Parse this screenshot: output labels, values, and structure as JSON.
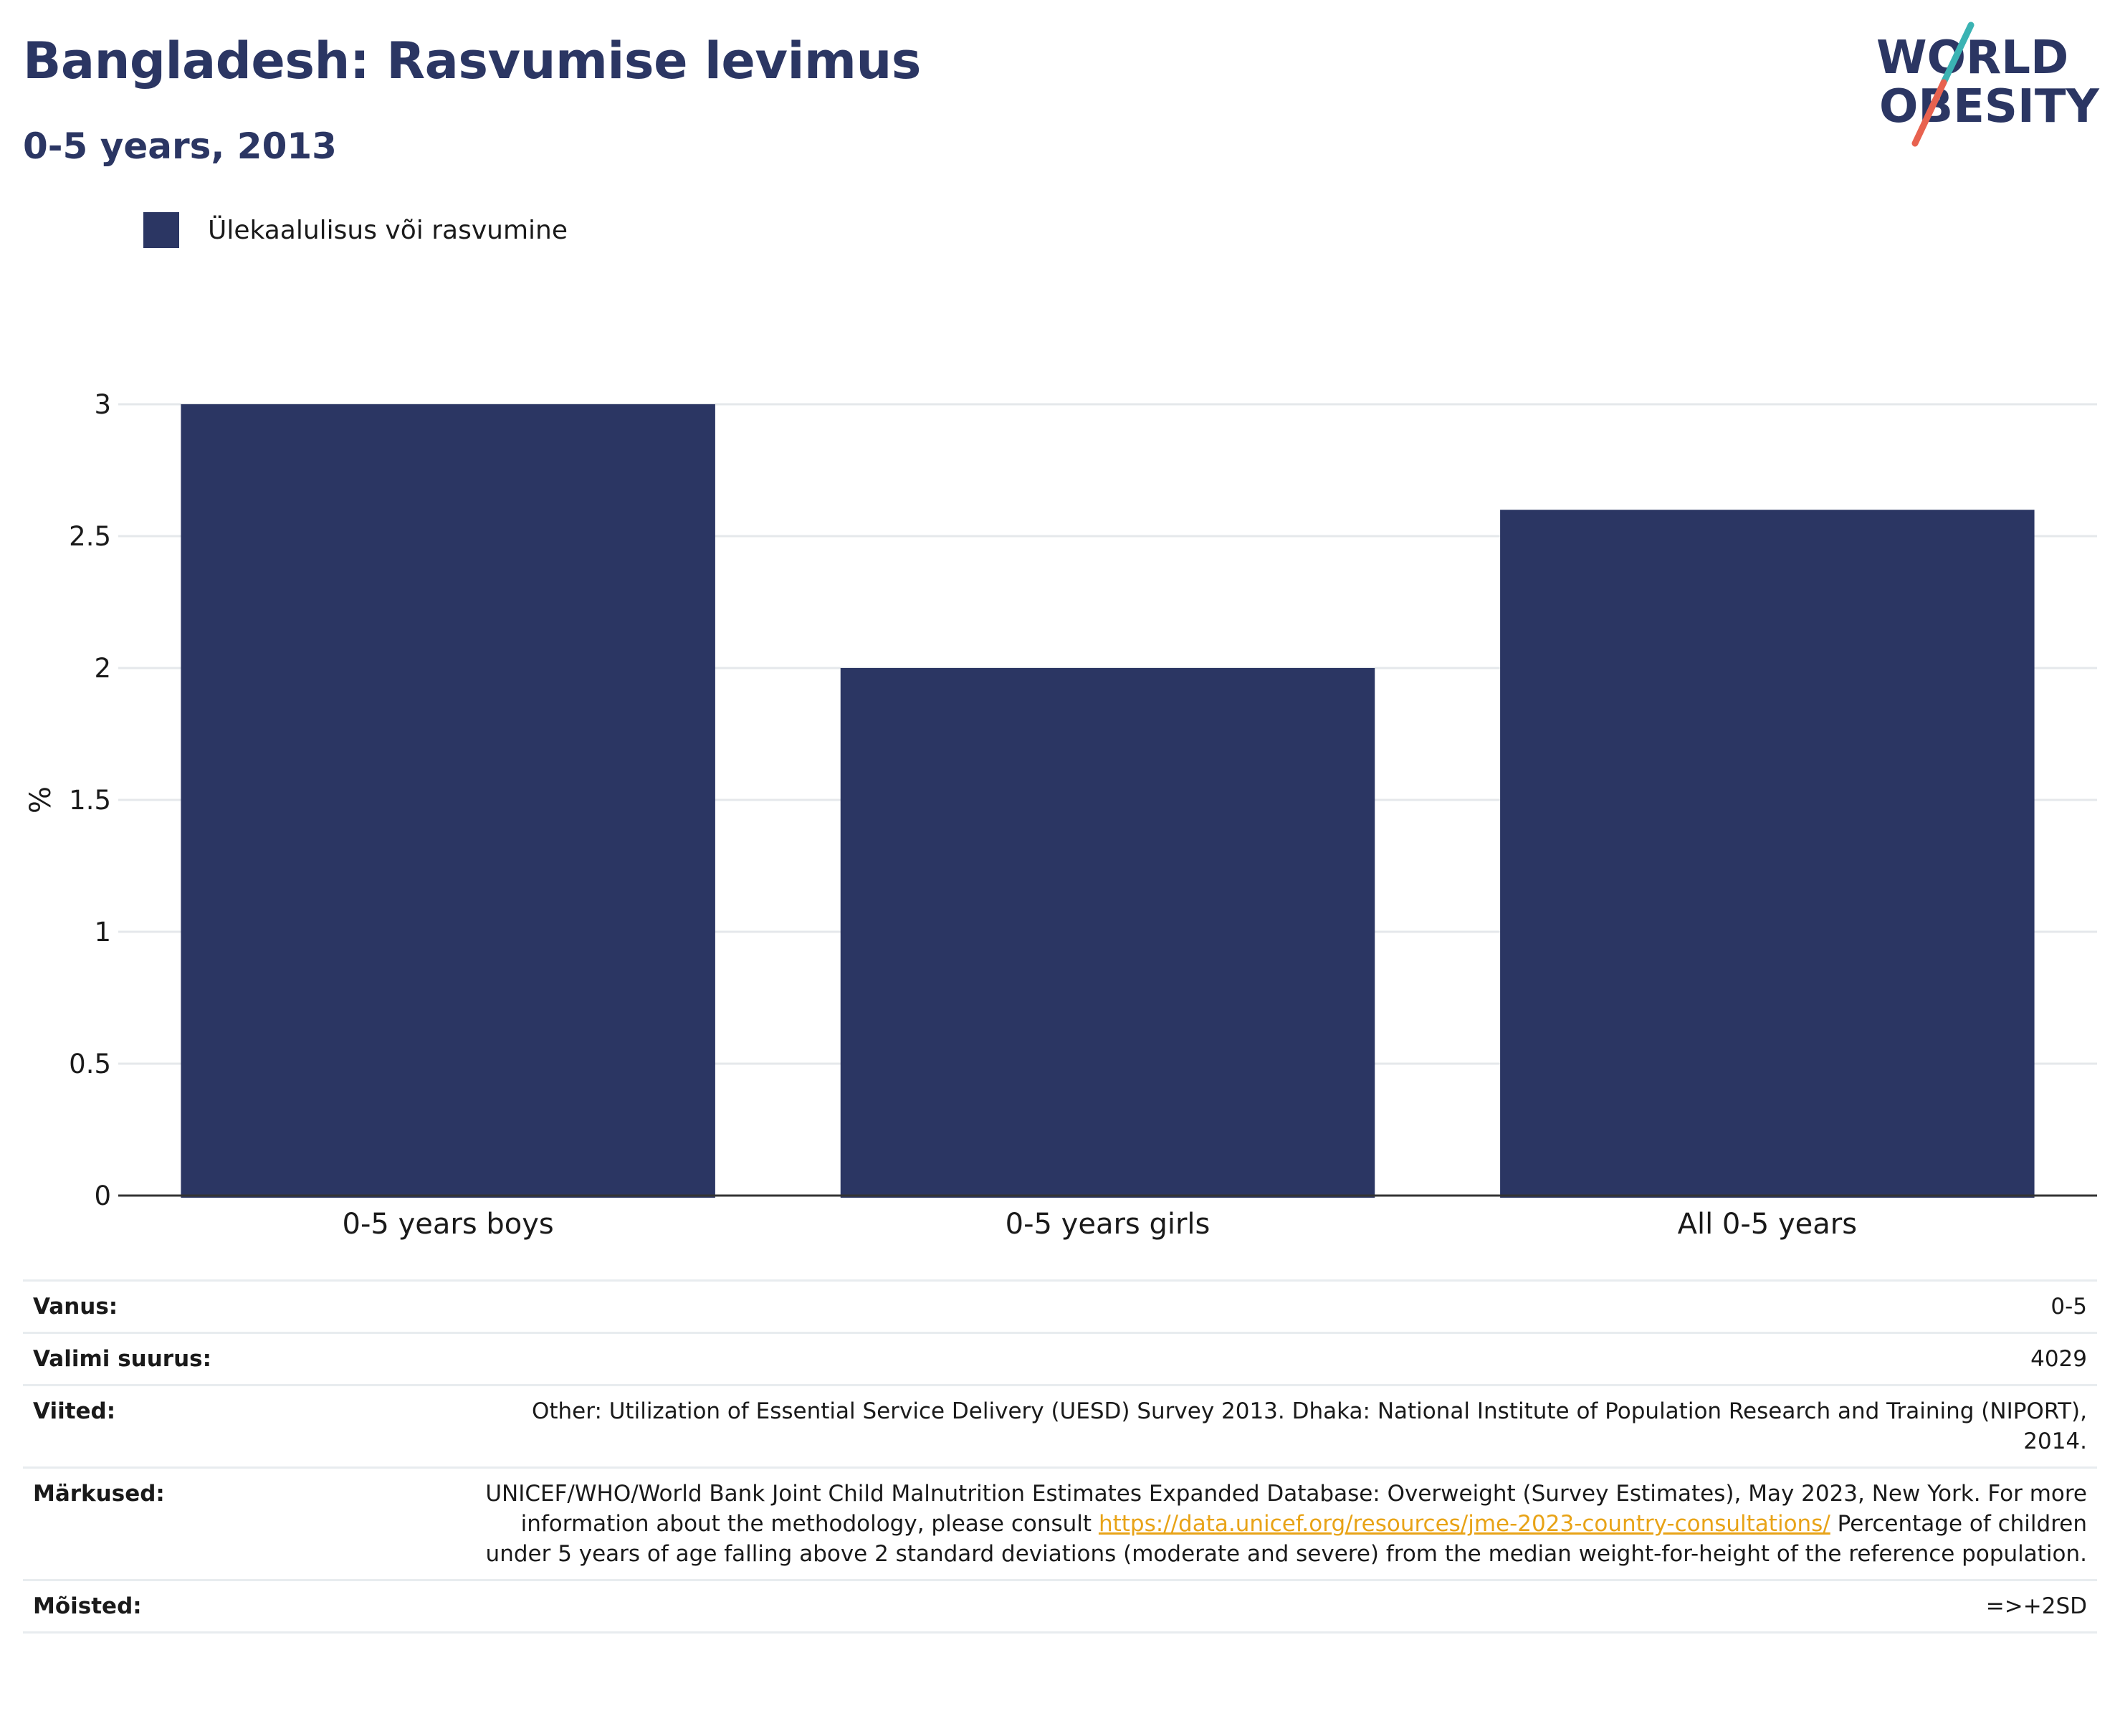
{
  "header": {
    "title": "Bangladesh: Rasvumise levimus",
    "subtitle": "0-5 years, 2013"
  },
  "logo": {
    "line1": "WORLD",
    "line2": "OBESITY",
    "colors": {
      "text": "#2b3663",
      "slash_top": "#3bb3b3",
      "slash_bottom": "#e8624f"
    }
  },
  "colors": {
    "bar": "#2b3663",
    "grid": "#e5e8eb",
    "axis": "#333333",
    "link": "#e8a317"
  },
  "chart_data": {
    "type": "bar",
    "categories": [
      "0-5 years boys",
      "0-5 years girls",
      "All 0-5 years"
    ],
    "series": [
      {
        "name": "Ülekaalulisus või rasvumine",
        "values": [
          3.0,
          2.0,
          2.6
        ]
      }
    ],
    "ylabel": "%",
    "ylim": [
      0,
      3
    ],
    "yticks": [
      0,
      0.5,
      1,
      1.5,
      2,
      2.5,
      3
    ],
    "ytick_labels": [
      "0",
      "0.5",
      "1",
      "1.5",
      "2",
      "2.5",
      "3"
    ],
    "grid": true,
    "legend": "top-left"
  },
  "info": {
    "age_label": "Vanus:",
    "age_value": "0-5",
    "sample_label": "Valimi suurus:",
    "sample_value": "4029",
    "refs_label": "Viited:",
    "refs_value": "Other: Utilization of Essential Service Delivery (UESD) Survey 2013. Dhaka: National Institute of Population Research and Training (NIPORT), 2014.",
    "notes_label": "Märkused:",
    "notes_text1": "UNICEF/WHO/World Bank Joint Child Malnutrition Estimates Expanded Database: Overweight (Survey Estimates), May 2023, New York. For more information about the methodology, please consult",
    "notes_link": "https://data.unicef.org/resources/jme-2023-country-consultations/",
    "notes_text2": "Percentage of children under 5 years of age falling above 2 standard deviations (moderate and severe) from the median weight-for-height of the reference population.",
    "defs_label": "Mõisted:",
    "defs_value": "=>+2SD"
  }
}
